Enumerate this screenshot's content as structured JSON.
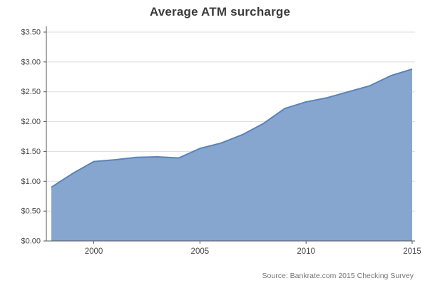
{
  "header": {
    "title": "Average ATM surcharge"
  },
  "footer": {
    "source": "Source: Bankrate.com 2015 Checking Survey"
  },
  "chart_data": {
    "type": "area",
    "title": "Average ATM surcharge",
    "xlabel": "",
    "ylabel": "",
    "x": [
      1998,
      1999,
      2000,
      2001,
      2002,
      2003,
      2004,
      2005,
      2006,
      2007,
      2008,
      2009,
      2010,
      2011,
      2012,
      2013,
      2014,
      2015
    ],
    "values": [
      0.9,
      1.13,
      1.33,
      1.36,
      1.4,
      1.41,
      1.39,
      1.55,
      1.64,
      1.78,
      1.97,
      2.22,
      2.33,
      2.4,
      2.5,
      2.6,
      2.77,
      2.88
    ],
    "ylim": [
      0,
      3.5
    ],
    "ytick_step": 0.5,
    "ytick_format": "dollar",
    "xticks": [
      2000,
      2005,
      2010,
      2015
    ],
    "grid": true,
    "legend": "none",
    "colors": {
      "area_fill": "#87a6cf",
      "area_line": "#5b84b5",
      "grid": "#dddddd",
      "axis": "#555555",
      "tick_label": "#4a4a4a"
    }
  }
}
